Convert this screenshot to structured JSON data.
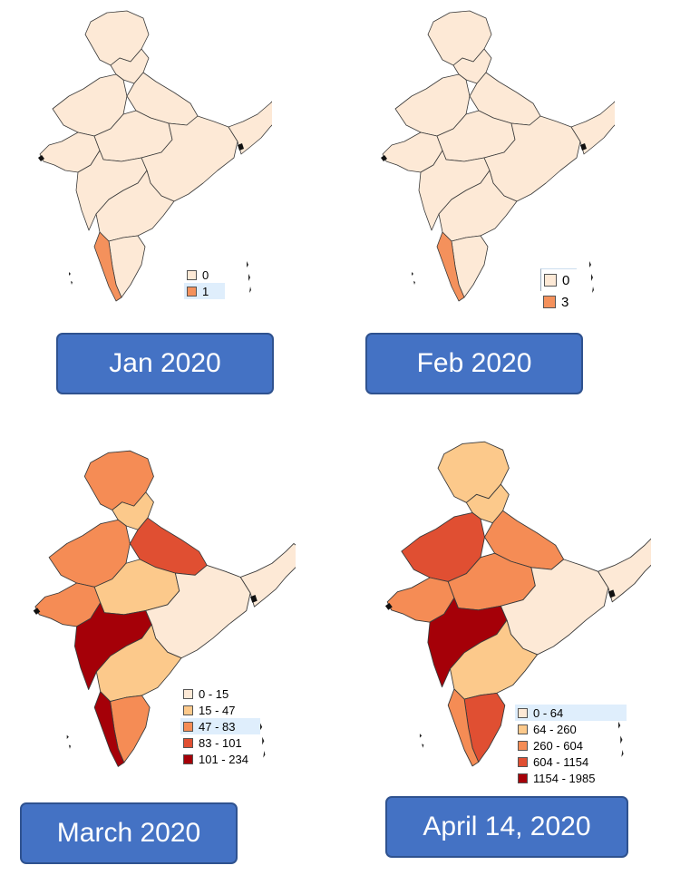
{
  "panels": [
    {
      "label": "Jan 2020",
      "legend": [
        {
          "label": "0",
          "color": "#fde9d6"
        },
        {
          "label": "1",
          "color": "#f4915c"
        }
      ],
      "regions": {
        "north_jk": 0,
        "north_small": 0,
        "northwest": 0,
        "north_up": 0,
        "west_gujarat": 0,
        "central": 0,
        "maharashtra": 0,
        "east": 0,
        "south_mid": 0,
        "south_tip": 0,
        "kerala": 1,
        "northeast": 0
      }
    },
    {
      "label": "Feb 2020",
      "legend": [
        {
          "label": "0",
          "color": "#fde9d6"
        },
        {
          "label": "3",
          "color": "#f4915c"
        }
      ],
      "regions": {
        "north_jk": 0,
        "north_small": 0,
        "northwest": 0,
        "north_up": 0,
        "west_gujarat": 0,
        "central": 0,
        "maharashtra": 0,
        "east": 0,
        "south_mid": 0,
        "south_tip": 0,
        "kerala": 1,
        "northeast": 0
      }
    },
    {
      "label": "March 2020",
      "legend": [
        {
          "label": "0 - 15",
          "color": "#fde9d6"
        },
        {
          "label": "15 - 47",
          "color": "#fcc98b"
        },
        {
          "label": "47 - 83",
          "color": "#f58c55"
        },
        {
          "label": "83 - 101",
          "color": "#e04f32"
        },
        {
          "label": "101 - 234",
          "color": "#a50008"
        }
      ],
      "regions": {
        "north_jk": 2,
        "north_small": 1,
        "northwest": 2,
        "north_up": 3,
        "west_gujarat": 2,
        "central": 1,
        "maharashtra": 4,
        "east": 0,
        "south_mid": 1,
        "south_tip": 2,
        "kerala": 4,
        "northeast": 0
      }
    },
    {
      "label": "April 14, 2020",
      "legend": [
        {
          "label": "0 - 64",
          "color": "#fde9d6"
        },
        {
          "label": "64 - 260",
          "color": "#fcc98b"
        },
        {
          "label": "260 - 604",
          "color": "#f58c55"
        },
        {
          "label": "604 - 1154",
          "color": "#e04f32"
        },
        {
          "label": "1154 - 1985",
          "color": "#a50008"
        }
      ],
      "regions": {
        "north_jk": 1,
        "north_small": 1,
        "northwest": 3,
        "north_up": 2,
        "west_gujarat": 2,
        "central": 2,
        "maharashtra": 4,
        "east": 0,
        "south_mid": 1,
        "south_tip": 3,
        "kerala": 2,
        "northeast": 0
      }
    }
  ]
}
